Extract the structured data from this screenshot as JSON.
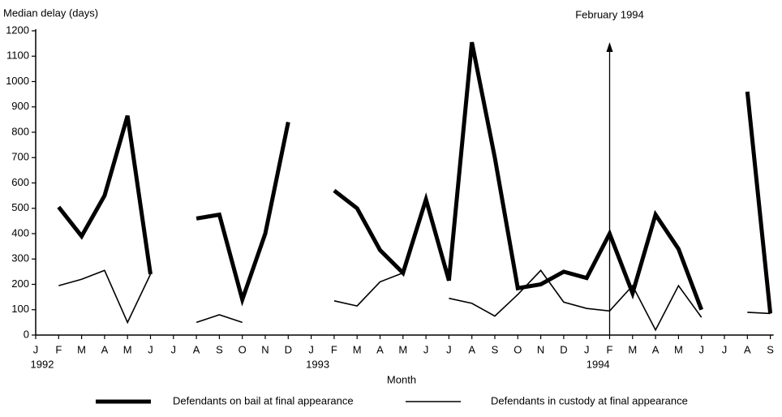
{
  "chart_data": {
    "type": "line",
    "y_axis_label": "Median delay (days)",
    "x_axis_label": "Month",
    "annotation": "February 1994",
    "categories": [
      "J",
      "F",
      "M",
      "A",
      "M",
      "J",
      "J",
      "A",
      "S",
      "O",
      "N",
      "D",
      "J",
      "F",
      "M",
      "A",
      "M",
      "J",
      "J",
      "A",
      "S",
      "O",
      "N",
      "D",
      "J",
      "F",
      "M",
      "A",
      "M",
      "J",
      "J",
      "A",
      "S"
    ],
    "year_labels": [
      "1992",
      "1993",
      "1994"
    ],
    "ylim": [
      0,
      1200
    ],
    "yticks": [
      0,
      100,
      200,
      300,
      400,
      500,
      600,
      700,
      800,
      900,
      1000,
      1100,
      1200
    ],
    "grid": false,
    "legend_position": "bottom",
    "series": [
      {
        "name": "Defendants on bail at final appearance",
        "color": "#000000",
        "width": 5,
        "values": [
          null,
          505,
          390,
          550,
          865,
          240,
          null,
          460,
          475,
          140,
          400,
          840,
          null,
          570,
          500,
          335,
          245,
          535,
          215,
          1155,
          700,
          185,
          200,
          250,
          225,
          400,
          165,
          475,
          340,
          100,
          null,
          960,
          85
        ]
      },
      {
        "name": "Defendants in custody at final appearance",
        "color": "#000000",
        "width": 1.6,
        "values": [
          null,
          195,
          220,
          255,
          50,
          240,
          null,
          50,
          80,
          50,
          null,
          null,
          null,
          135,
          115,
          210,
          245,
          null,
          145,
          125,
          75,
          160,
          255,
          130,
          105,
          95,
          195,
          20,
          195,
          70,
          null,
          90,
          85
        ]
      }
    ]
  }
}
